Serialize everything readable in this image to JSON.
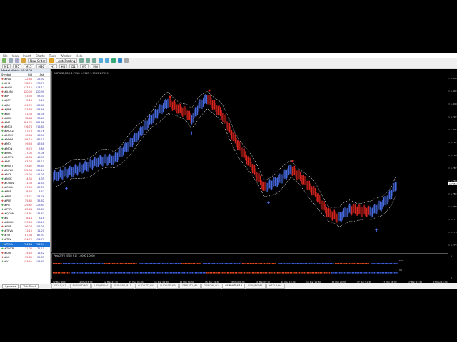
{
  "menu": [
    "File",
    "View",
    "Insert",
    "Charts",
    "Tools",
    "Window",
    "Help"
  ],
  "toolbar": {
    "new_order": "New Order",
    "auto_trading": "AutoTrading",
    "timeframes": [
      "M1",
      "M5",
      "M15",
      "M30",
      "H1",
      "H4",
      "D1",
      "W1",
      "MN"
    ]
  },
  "market_watch": {
    "title": "Market Watch: 16:16:29",
    "headers": [
      "Symbol",
      "Bid",
      "Ask"
    ],
    "rows": [
      {
        "s": "#HAL",
        "b": "22.86",
        "a": "22.92",
        "d": "dn"
      },
      {
        "s": "#HD",
        "b": "278.75",
        "a": "278.77",
        "d": "up"
      },
      {
        "s": "#HON",
        "b": "213.15",
        "a": "213.17",
        "d": "dn"
      },
      {
        "s": "#ILMN",
        "b": "420.00",
        "a": "420.90",
        "d": "dn"
      },
      {
        "s": "#IP",
        "b": "53.30",
        "a": "53.31",
        "d": "dn"
      },
      {
        "s": "#JCP",
        "b": "0.18",
        "a": "0.20",
        "d": "up"
      },
      {
        "s": "#JNJ",
        "b": "160.75",
        "a": "160.81",
        "d": "up"
      },
      {
        "s": "#JPM",
        "b": "153.63",
        "a": "153.66",
        "d": "dn"
      },
      {
        "s": "#KO",
        "b": "51.36",
        "a": "51.38",
        "d": "up"
      },
      {
        "s": "#KHC",
        "b": "38.64",
        "a": "38.67",
        "d": "dn"
      },
      {
        "s": "#MA",
        "b": "384.76",
        "a": "384.86",
        "d": "dn"
      },
      {
        "s": "#MCD",
        "b": "216.78",
        "a": "216.80",
        "d": "dn"
      },
      {
        "s": "#MDLZ",
        "b": "57.73",
        "a": "57.76",
        "d": "up"
      },
      {
        "s": "#MGM",
        "b": "40.04",
        "a": "40.06",
        "d": "up"
      },
      {
        "s": "#MMM",
        "b": "186.12",
        "a": "186.15",
        "d": "up"
      },
      {
        "s": "#MO",
        "b": "49.43",
        "a": "49.48",
        "d": "dn"
      },
      {
        "s": "#MON",
        "b": "9.70",
        "a": "9.80",
        "d": "up"
      },
      {
        "s": "#MRK",
        "b": "77.05",
        "a": "77.06",
        "d": "up"
      },
      {
        "s": "#MRVL",
        "b": "48.34",
        "a": "48.37",
        "d": "dn"
      },
      {
        "s": "#MS",
        "b": "83.07",
        "a": "83.11",
        "d": "dn"
      },
      {
        "s": "#MSFT",
        "b": "93.62",
        "a": "93.65",
        "d": "up"
      },
      {
        "s": "#NFLX",
        "b": "532.34",
        "a": "532.16",
        "d": "dn"
      },
      {
        "s": "#NKE",
        "b": "145.00",
        "a": "145.05",
        "d": "dn"
      },
      {
        "s": "#NOK",
        "b": "4.35",
        "a": "4.35",
        "d": "up"
      },
      {
        "s": "#ORAN",
        "b": "11.38",
        "a": "11.40",
        "d": "dn"
      },
      {
        "s": "#ORCL",
        "b": "67.00",
        "a": "67.03",
        "d": "dn"
      },
      {
        "s": "#PBR",
        "b": "8.54",
        "a": "8.57",
        "d": "up"
      },
      {
        "s": "#PEP",
        "b": "133.71",
        "a": "133.76",
        "d": "up"
      },
      {
        "s": "#PFE",
        "b": "35.60",
        "a": "35.62",
        "d": "dn"
      },
      {
        "s": "#PG",
        "b": "129.82",
        "a": "129.84",
        "d": "up"
      },
      {
        "s": "#PYPL",
        "b": "20.64",
        "a": "20.67",
        "d": "up"
      },
      {
        "s": "#QCOM",
        "b": "134.61",
        "a": "134.67",
        "d": "dn"
      },
      {
        "s": "#S",
        "b": "8.14",
        "a": "8.16",
        "d": "up"
      },
      {
        "s": "#SBUX",
        "b": "113.06",
        "a": "113.10",
        "d": "dn"
      },
      {
        "s": "#SNE",
        "b": "106.07",
        "a": "106.09",
        "d": "dn"
      },
      {
        "s": "#TEVA",
        "b": "11.15",
        "a": "11.20",
        "d": "up"
      },
      {
        "s": "#TM",
        "b": "87.94",
        "a": "87.97",
        "d": "up"
      },
      {
        "s": "#TRV",
        "b": "154.70",
        "a": "154.73",
        "d": "up"
      },
      {
        "s": "#TSLA",
        "b": "704.64",
        "a": "704.94",
        "d": "up",
        "selected": true
      },
      {
        "s": "#TWTR",
        "b": "71.06",
        "a": "71.11",
        "d": "up"
      },
      {
        "s": "#UBS",
        "b": "15.40",
        "a": "15.42",
        "d": "dn"
      },
      {
        "s": "#UL",
        "b": "55.83",
        "a": "55.83",
        "d": "dn"
      },
      {
        "s": "#V",
        "b": "191.41",
        "a": "191.43",
        "d": "up"
      }
    ],
    "tabs": [
      "Symbols",
      "Tick Chart"
    ]
  },
  "chart": {
    "header": "GBPAUD,M15 1.7958 1.7963 1.7955 1.7959",
    "indicator_header": "Para 2TF | M30 | H1 | 1.0000 1.0000",
    "indicator_labels": [
      "M30",
      "H1"
    ],
    "price_labels": [
      "1.8050",
      "1.8025",
      "1.8000",
      "1.7975",
      "1.7950",
      "1.7925",
      "1.7900",
      "1.7875",
      "1.7850",
      "1.7825",
      "1.7800",
      "1.7775",
      "1.7750",
      "1.7725"
    ],
    "current_price": "1.7959",
    "indicator_scale": [
      "1",
      "0"
    ],
    "time_labels": [
      "12 Mar 2021",
      "12 Mar 16:30",
      "12 Mar 23:30",
      "15 Mar 04:30",
      "15 Mar 09:30",
      "15 Mar 14:30",
      "15 Mar 19:30",
      "16 Mar 00:30",
      "16 Mar 05:30",
      "16 Mar 10:30",
      "16 Mar 15:30",
      "16 Mar 20:30",
      "17 Mar 01:30",
      "17 Mar 06:30",
      "17 Mar 11:30",
      "17 Mar 16:30"
    ],
    "colors": {
      "bull": "#4a6fe8",
      "bear": "#e0261f",
      "envelope": "#ffffff",
      "ind_red": "#e8481e",
      "ind_blue": "#3d5fe0"
    }
  },
  "chart_tabs": [
    "GOLD,H1",
    "EURUSD,M5",
    "USDJPY,H4",
    "EURGBP,M15",
    "AUDNZD,H4",
    "AUDUSD,M5",
    "GBPUSD,M5",
    "GBPCHF,H1",
    "GBPAUD,M15",
    "EURJPY,M5",
    "#TSLA,H4"
  ],
  "active_chart_tab": "GBPAUD,M15"
}
